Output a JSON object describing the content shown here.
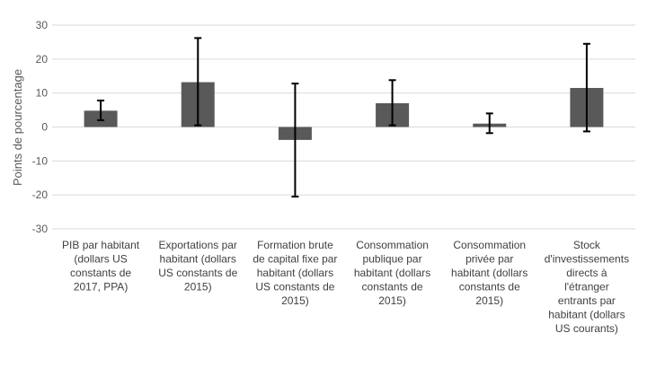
{
  "chart_data": {
    "type": "bar",
    "title": "",
    "xlabel": "",
    "ylabel": "Points de pourcentage",
    "ylim": [
      -30,
      30
    ],
    "yticks": [
      30,
      20,
      10,
      0,
      -10,
      -20,
      -30
    ],
    "grid": true,
    "legend": "none",
    "categories": [
      [
        "PIB par habitant",
        "(dollars US",
        "constants de",
        "2017, PPA)"
      ],
      [
        "Exportations par",
        "habitant (dollars",
        "US constants de",
        "2015)"
      ],
      [
        "Formation brute",
        "de capital fixe par",
        "habitant (dollars",
        "US constants de",
        "2015)"
      ],
      [
        "Consommation",
        "publique par",
        "habitant (dollars",
        "constants de",
        "2015)"
      ],
      [
        "Consommation",
        "privée par",
        "habitant (dollars",
        "constants de",
        "2015)"
      ],
      [
        "Stock",
        "d'investissements",
        "directs à",
        "l'étranger",
        "entrants par",
        "habitant (dollars",
        "US courants)"
      ]
    ],
    "series": [
      {
        "values": [
          4.8,
          13.2,
          -3.8,
          7.0,
          1.0,
          11.5
        ],
        "error_low": [
          2.0,
          0.5,
          -20.5,
          0.5,
          -1.8,
          -1.3
        ],
        "error_high": [
          7.8,
          26.2,
          12.8,
          13.8,
          4.0,
          24.5
        ],
        "color": "#595959"
      }
    ],
    "colors": {
      "bar": "#595959",
      "error": "#000000",
      "grid": "#d9d9d9",
      "zero_line": "#d9d9d9"
    }
  }
}
